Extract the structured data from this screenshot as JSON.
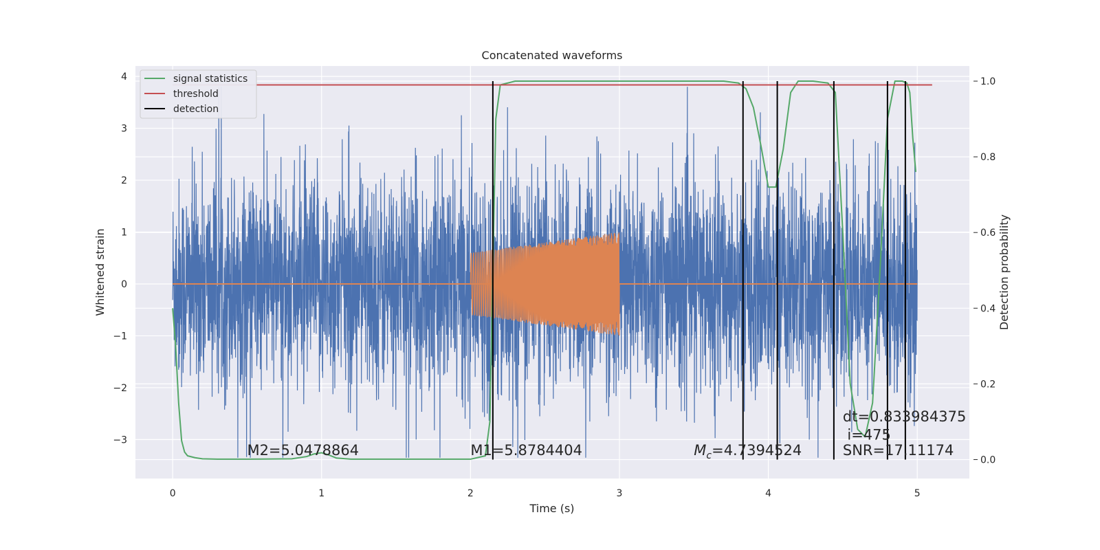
{
  "chart_data": {
    "type": "line",
    "title": "Concatenated waveforms",
    "xlabel": "Time (s)",
    "ylabel": "Whitened strain",
    "y2label": "Detection probability",
    "xlim": [
      -0.25,
      5.35
    ],
    "ylim": [
      -3.75,
      4.2
    ],
    "y2lim": [
      -0.05,
      1.04
    ],
    "x_ticks": [
      "0",
      "1",
      "2",
      "3",
      "4",
      "5"
    ],
    "y_ticks": [
      "−3",
      "−2",
      "−1",
      "0",
      "1",
      "2",
      "3",
      "4"
    ],
    "y2_ticks": [
      "0.0",
      "0.2",
      "0.4",
      "0.6",
      "0.8",
      "1.0"
    ],
    "grid": true,
    "legend_position": "top-left",
    "colors": {
      "strain": "#4c72b0",
      "template": "#dd8452",
      "statistics": "#55a868",
      "threshold": "#c44e52",
      "detection": "#000000",
      "background": "#eaeaf2"
    },
    "legend": [
      "signal statistics",
      "threshold",
      "detection"
    ],
    "series": [
      {
        "name": "signal statistics",
        "axis": "right",
        "x": [
          0.0,
          0.02,
          0.04,
          0.06,
          0.08,
          0.1,
          0.15,
          0.2,
          0.3,
          0.5,
          0.8,
          0.9,
          0.95,
          1.0,
          1.05,
          1.1,
          1.2,
          1.5,
          2.0,
          2.1,
          2.13,
          2.15,
          2.17,
          2.2,
          2.3,
          2.5,
          3.0,
          3.5,
          3.7,
          3.8,
          3.85,
          3.9,
          3.95,
          4.0,
          4.05,
          4.1,
          4.15,
          4.2,
          4.3,
          4.4,
          4.45,
          4.5,
          4.55,
          4.6,
          4.65,
          4.7,
          4.75,
          4.8,
          4.85,
          4.9,
          4.93,
          4.95,
          4.97,
          4.99
        ],
        "y": [
          0.4,
          0.3,
          0.15,
          0.05,
          0.02,
          0.01,
          0.005,
          0.002,
          0.001,
          0.001,
          0.002,
          0.008,
          0.015,
          0.018,
          0.012,
          0.004,
          0.001,
          0.001,
          0.001,
          0.01,
          0.1,
          0.5,
          0.9,
          0.99,
          1.0,
          1.0,
          1.0,
          1.0,
          1.0,
          0.995,
          0.98,
          0.93,
          0.83,
          0.72,
          0.72,
          0.82,
          0.97,
          1.0,
          1.0,
          0.995,
          0.97,
          0.6,
          0.2,
          0.08,
          0.06,
          0.15,
          0.5,
          0.9,
          1.0,
          1.0,
          0.995,
          0.97,
          0.85,
          0.76
        ]
      },
      {
        "name": "threshold",
        "axis": "right",
        "x": [
          0.0,
          5.1
        ],
        "y": [
          0.99,
          0.99
        ]
      }
    ],
    "detections_x": [
      2.15,
      3.83,
      4.06,
      4.44,
      4.8,
      4.92
    ],
    "strain": {
      "x_range": [
        0.0,
        5.0
      ],
      "typical_amplitude": 1.0,
      "max": 3.8,
      "min": -3.35
    },
    "template": {
      "x_range": [
        2.0,
        3.0
      ],
      "amplitude_start": 0.6,
      "amplitude_end": 1.0
    },
    "annotations": [
      {
        "id": "m2",
        "text": "M2=5.0478864",
        "x": 0.5,
        "y": -3.3
      },
      {
        "id": "m1",
        "text": "M1=5.8784404",
        "x": 2.0,
        "y": -3.3
      },
      {
        "id": "mc",
        "prefix": "M",
        "sub": "c",
        "text": "=4.7394524",
        "x": 3.5,
        "y": -3.3
      },
      {
        "id": "dt",
        "text": "dt=0.833984375",
        "x": 4.5,
        "y": -2.65
      },
      {
        "id": "i",
        "text": "i=475",
        "x": 4.53,
        "y": -3.0
      },
      {
        "id": "snr",
        "text": "SNR=17.11174",
        "x": 4.5,
        "y": -3.3
      }
    ]
  }
}
